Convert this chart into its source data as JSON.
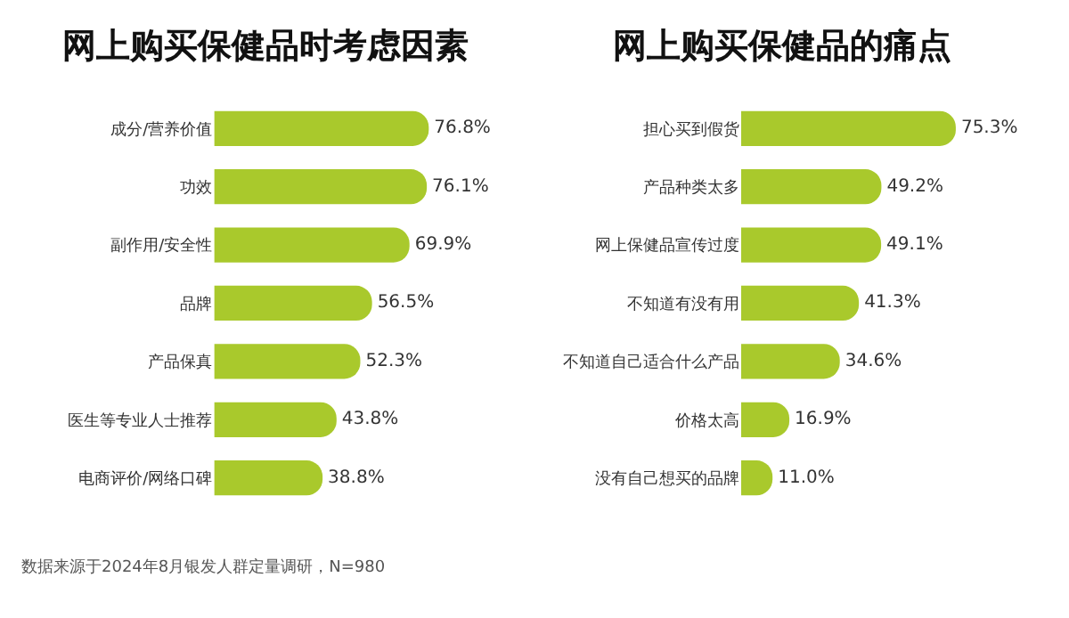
{
  "chart_data": [
    {
      "type": "bar",
      "orientation": "horizontal",
      "title": "网上购买保健品时考虑因素",
      "categories": [
        "成分/营养价值",
        "功效",
        "副作用/安全性",
        "品牌",
        "产品保真",
        "医生等专业人士推荐",
        "电商评价/网络口碑"
      ],
      "values": [
        76.8,
        76.1,
        69.9,
        56.5,
        52.3,
        43.8,
        38.8
      ],
      "value_labels": [
        "76.8%",
        "76.1%",
        "69.9%",
        "56.5%",
        "52.3%",
        "43.8%",
        "38.8%"
      ],
      "color": "#a9c92c",
      "annotations": [
        "数据来源于2024年8月银发人群定量调研，N=980"
      ]
    },
    {
      "type": "bar",
      "orientation": "horizontal",
      "title": "网上购买保健品的痛点",
      "categories": [
        "担心买到假货",
        "产品种类太多",
        "网上保健品宣传过度",
        "不知道有没有用",
        "不知道自己适合什么产品",
        "价格太高",
        "没有自己想买的品牌"
      ],
      "values": [
        75.3,
        49.2,
        49.1,
        41.3,
        34.6,
        16.9,
        11.0
      ],
      "value_labels": [
        "75.3%",
        "49.2%",
        "49.1%",
        "41.3%",
        "34.6%",
        "16.9%",
        "11.0%"
      ],
      "color": "#a9c92c"
    }
  ]
}
